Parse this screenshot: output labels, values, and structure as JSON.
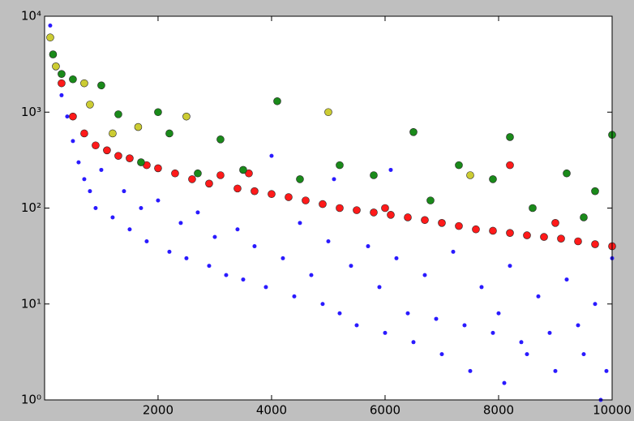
{
  "chart_data": {
    "type": "scatter",
    "log_y": true,
    "xlim": [
      1,
      10000
    ],
    "ylim": [
      1,
      10000
    ],
    "xticks": [
      2000,
      4000,
      6000,
      8000,
      10000
    ],
    "yticks": [
      {
        "value": 1,
        "label": "10⁰"
      },
      {
        "value": 10,
        "label": "10¹"
      },
      {
        "value": 100,
        "label": "10²"
      },
      {
        "value": 1000,
        "label": "10³"
      },
      {
        "value": 10000,
        "label": "10⁴"
      }
    ],
    "series": [
      {
        "color": "#2a1aff",
        "size": "small",
        "x": [
          100,
          200,
          300,
          400,
          500,
          600,
          700,
          800,
          900,
          1000,
          1200,
          1400,
          1500,
          1700,
          1800,
          2000,
          2200,
          2400,
          2500,
          2700,
          2900,
          3000,
          3200,
          3400,
          3500,
          3700,
          3900,
          4000,
          4200,
          4400,
          4500,
          4700,
          4900,
          5000,
          5200,
          5400,
          5500,
          5700,
          5900,
          6000,
          6200,
          6400,
          6500,
          6700,
          6900,
          7000,
          7200,
          7400,
          7500,
          7700,
          7900,
          8000,
          8200,
          8400,
          8500,
          8700,
          8900,
          9000,
          9200,
          9400,
          9500,
          9700,
          9900,
          10000,
          9800,
          8100,
          6100,
          5100
        ],
        "values": [
          8000,
          3000,
          1500,
          900,
          500,
          300,
          200,
          150,
          100,
          250,
          80,
          150,
          60,
          100,
          45,
          120,
          35,
          70,
          30,
          90,
          25,
          50,
          20,
          60,
          18,
          40,
          15,
          350,
          30,
          12,
          70,
          20,
          10,
          45,
          8,
          25,
          6,
          40,
          15,
          5,
          30,
          8,
          4,
          20,
          7,
          3,
          35,
          6,
          2,
          15,
          5,
          8,
          25,
          4,
          3,
          12,
          5,
          2,
          18,
          6,
          3,
          10,
          2,
          30,
          1,
          1.5,
          250,
          200
        ]
      },
      {
        "color": "#ff1a1a",
        "size": "large",
        "x": [
          300,
          500,
          700,
          900,
          1100,
          1300,
          1500,
          1800,
          2000,
          2300,
          2600,
          2900,
          3100,
          3400,
          3700,
          4000,
          4300,
          4600,
          4900,
          5200,
          5500,
          5800,
          6100,
          6400,
          6700,
          7000,
          7300,
          7600,
          7900,
          8200,
          8500,
          8800,
          9100,
          9400,
          9700,
          10000,
          8200,
          3600,
          6000,
          9000
        ],
        "values": [
          2000,
          900,
          600,
          450,
          400,
          350,
          330,
          280,
          260,
          230,
          200,
          180,
          220,
          160,
          150,
          140,
          130,
          120,
          110,
          100,
          95,
          90,
          85,
          80,
          75,
          70,
          65,
          60,
          58,
          55,
          52,
          50,
          48,
          45,
          42,
          40,
          280,
          230,
          100,
          70
        ]
      },
      {
        "color": "#1a8a1a",
        "size": "large",
        "x": [
          150,
          300,
          500,
          1000,
          1300,
          2000,
          2200,
          3100,
          4100,
          4500,
          5200,
          6500,
          5800,
          7300,
          8200,
          7900,
          9200,
          9700,
          10000,
          1700,
          3500,
          6800,
          8600,
          9500,
          2700
        ],
        "values": [
          4000,
          2500,
          2200,
          1900,
          950,
          1000,
          600,
          520,
          1300,
          200,
          280,
          620,
          220,
          280,
          550,
          200,
          230,
          150,
          580,
          300,
          250,
          120,
          100,
          80,
          230
        ]
      },
      {
        "color": "#cccc33",
        "size": "large",
        "x": [
          100,
          200,
          700,
          800,
          1650,
          2500,
          5000,
          7500,
          1200
        ],
        "values": [
          6000,
          3000,
          2000,
          1200,
          700,
          900,
          1000,
          220,
          600
        ]
      }
    ]
  }
}
